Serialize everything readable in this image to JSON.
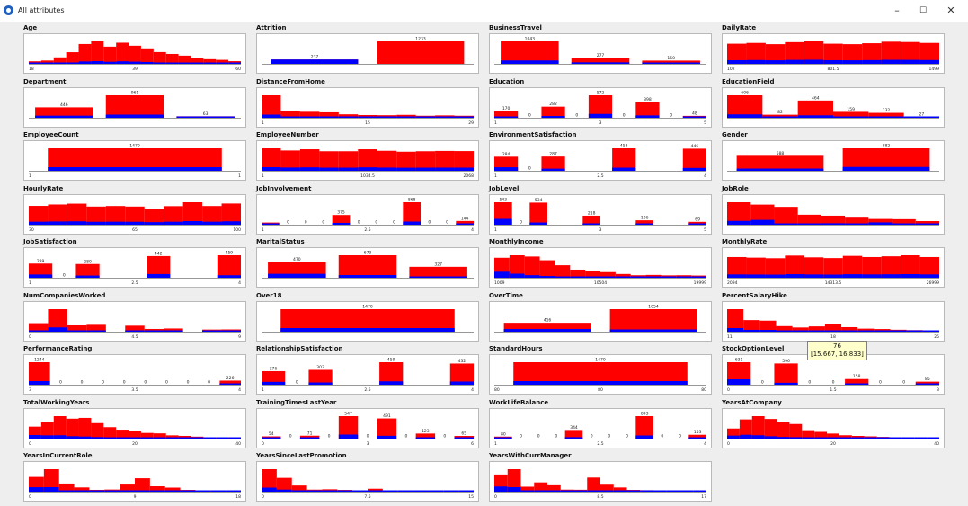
{
  "window": {
    "title": "All attributes",
    "minimize_label": "–",
    "maximize_label": "☐",
    "close_label": "✕",
    "app_icon": "weka-bird-icon"
  },
  "colors": {
    "bar": "#ff0000",
    "class_overlay": "#0000ff",
    "panel_bg": "#ffffff",
    "window_bg": "#eeeeee"
  },
  "tooltip": {
    "line1": "76",
    "line2": "[15.667, 16.833]"
  },
  "chart_data": [
    {
      "type": "bar",
      "title": "Age",
      "values": [
        19,
        25,
        49,
        88,
        150,
        170,
        130,
        160,
        137,
        117,
        89,
        75,
        62,
        45,
        35,
        30,
        20
      ],
      "value_labels": [
        "",
        "",
        "",
        "",
        "",
        "",
        "",
        "",
        "",
        "",
        "",
        "",
        "",
        "",
        "",
        "",
        ""
      ],
      "ticks": [
        "18",
        "39",
        "60"
      ],
      "overlay": [
        0.12,
        0.12,
        0.12,
        0.12,
        0.12,
        0.12,
        0.12,
        0.12,
        0.12,
        0.12,
        0.12,
        0.12,
        0.12,
        0.12,
        0.12,
        0.12,
        0.12
      ]
    },
    {
      "type": "bar",
      "title": "Attrition",
      "values": [
        237,
        1233
      ],
      "value_labels": [
        "237",
        "1233"
      ],
      "ticks": [],
      "overlay": [
        1.0,
        0.0
      ]
    },
    {
      "type": "bar",
      "title": "BusinessTravel",
      "values": [
        1043,
        277,
        150
      ],
      "value_labels": [
        "1043",
        "277",
        "150"
      ],
      "ticks": [],
      "overlay": [
        0.15,
        0.25,
        0.08
      ]
    },
    {
      "type": "bar",
      "title": "DailyRate",
      "values": [
        130,
        135,
        127,
        140,
        145,
        130,
        127,
        133,
        143,
        141,
        135
      ],
      "value_labels": [
        "",
        "",
        "",
        "",
        "",
        "",
        "",
        "",
        "",
        "",
        ""
      ],
      "ticks": [
        "102",
        "801.5",
        "1499"
      ],
      "overlay": [
        0.18,
        0.18,
        0.18,
        0.18,
        0.18,
        0.18,
        0.18,
        0.18,
        0.18,
        0.18,
        0.18
      ]
    },
    {
      "type": "bar",
      "title": "Department",
      "values": [
        446,
        961,
        63
      ],
      "value_labels": [
        "446",
        "961",
        "63"
      ],
      "ticks": [],
      "overlay": [
        0.2,
        0.14,
        0.19
      ]
    },
    {
      "type": "bar",
      "title": "DistanceFromHome",
      "values": [
        620,
        180,
        165,
        150,
        95,
        75,
        70,
        80,
        55,
        65,
        55
      ],
      "value_labels": [
        "",
        "",
        "",
        "",
        "",
        "",
        "",
        "",
        "",
        "",
        ""
      ],
      "ticks": [
        "1",
        "15",
        "29"
      ],
      "overlay": [
        0.14,
        0.14,
        0.14,
        0.14,
        0.14,
        0.14,
        0.14,
        0.14,
        0.14,
        0.14,
        0.14
      ]
    },
    {
      "type": "bar",
      "title": "Education",
      "values": [
        170,
        0,
        282,
        0,
        572,
        0,
        398,
        0,
        48
      ],
      "value_labels": [
        "170",
        "0",
        "282",
        "0",
        "572",
        "0",
        "398",
        "0",
        "48"
      ],
      "ticks": [
        "1",
        "3",
        "5"
      ],
      "overlay": [
        0.18,
        0,
        0.16,
        0,
        0.17,
        0,
        0.15,
        0,
        0.1
      ]
    },
    {
      "type": "bar",
      "title": "EducationField",
      "values": [
        606,
        82,
        464,
        159,
        132,
        27
      ],
      "value_labels": [
        "606",
        "82",
        "464",
        "159",
        "132",
        "27"
      ],
      "ticks": [],
      "overlay": [
        0.15,
        0.15,
        0.14,
        0.22,
        0.13,
        0.26
      ]
    },
    {
      "type": "bar",
      "title": "EmployeeCount",
      "values": [
        1470
      ],
      "value_labels": [
        "1470"
      ],
      "ticks": [
        "1",
        "1"
      ],
      "overlay": [
        0.16
      ]
    },
    {
      "type": "bar",
      "title": "EmployeeNumber",
      "values": [
        146,
        132,
        140,
        127,
        127,
        140,
        130,
        124,
        127,
        129,
        128
      ],
      "value_labels": [
        "",
        "",
        "",
        "",
        "",
        "",
        "",
        "",
        "",
        "",
        ""
      ],
      "ticks": [
        "1",
        "1034.5",
        "2068"
      ],
      "overlay": [
        0.16,
        0.16,
        0.16,
        0.16,
        0.16,
        0.16,
        0.16,
        0.16,
        0.16,
        0.16,
        0.16
      ]
    },
    {
      "type": "bar",
      "title": "EnvironmentSatisfaction",
      "values": [
        284,
        0,
        287,
        0,
        0,
        453,
        0,
        0,
        446
      ],
      "value_labels": [
        "284",
        "0",
        "287",
        "",
        "",
        "453",
        "",
        "",
        "446"
      ],
      "ticks": [
        "1",
        "2.5",
        "4"
      ],
      "overlay": [
        0.25,
        0,
        0.15,
        0,
        0,
        0.14,
        0,
        0,
        0.13
      ]
    },
    {
      "type": "bar",
      "title": "Gender",
      "values": [
        588,
        882
      ],
      "value_labels": [
        "588",
        "882"
      ],
      "ticks": [],
      "overlay": [
        0.15,
        0.17
      ]
    },
    {
      "type": "bar",
      "title": "HourlyRate",
      "values": [
        135,
        145,
        151,
        130,
        134,
        130,
        115,
        133,
        161,
        134,
        152
      ],
      "value_labels": [
        "",
        "",
        "",
        "",
        "",
        "",
        "",
        "",
        "",
        "",
        ""
      ],
      "ticks": [
        "30",
        "65",
        "100"
      ],
      "overlay": [
        0.16,
        0.16,
        0.16,
        0.16,
        0.16,
        0.16,
        0.16,
        0.16,
        0.16,
        0.16,
        0.16
      ]
    },
    {
      "type": "bar",
      "title": "JobInvolvement",
      "values": [
        83,
        0,
        0,
        0,
        375,
        0,
        0,
        0,
        868,
        0,
        0,
        144
      ],
      "value_labels": [
        "",
        "0",
        "0",
        "0",
        "375",
        "0",
        "0",
        "0",
        "868",
        "0",
        "0",
        "144"
      ],
      "ticks": [
        "1",
        "2.5",
        "4"
      ],
      "overlay": [
        0.3,
        0,
        0,
        0,
        0.19,
        0,
        0,
        0,
        0.14,
        0,
        0,
        0.09
      ]
    },
    {
      "type": "bar",
      "title": "JobLevel",
      "values": [
        543,
        0,
        534,
        0,
        0,
        218,
        0,
        0,
        106,
        0,
        0,
        69
      ],
      "value_labels": [
        "543",
        "0",
        "534",
        "",
        "",
        "218",
        "",
        "",
        "106",
        "",
        "",
        "69"
      ],
      "ticks": [
        "1",
        "3",
        "5"
      ],
      "overlay": [
        0.26,
        0,
        0.1,
        0,
        0,
        0.15,
        0,
        0,
        0.05,
        0,
        0,
        0.07
      ]
    },
    {
      "type": "bar",
      "title": "JobRole",
      "values": [
        326,
        292,
        259,
        145,
        131,
        102,
        83,
        80,
        52
      ],
      "value_labels": [
        "",
        "",
        "",
        "",
        "",
        "",
        "",
        "",
        ""
      ],
      "ticks": [],
      "overlay": [
        0.17,
        0.24,
        0.07,
        0.07,
        0.16,
        0.05,
        0.4,
        0.02,
        0.07
      ]
    },
    {
      "type": "bar",
      "title": "JobSatisfaction",
      "values": [
        289,
        0,
        280,
        0,
        0,
        442,
        0,
        0,
        459
      ],
      "value_labels": [
        "289",
        "0",
        "280",
        "",
        "",
        "442",
        "",
        "",
        "459"
      ],
      "ticks": [
        "1",
        "2.5",
        "4"
      ],
      "overlay": [
        0.23,
        0,
        0.16,
        0,
        0,
        0.17,
        0,
        0,
        0.11
      ]
    },
    {
      "type": "bar",
      "title": "MaritalStatus",
      "values": [
        470,
        673,
        327
      ],
      "value_labels": [
        "470",
        "673",
        "327"
      ],
      "ticks": [],
      "overlay": [
        0.25,
        0.12,
        0.1
      ]
    },
    {
      "type": "bar",
      "title": "MonthlyIncome",
      "values": [
        320,
        360,
        340,
        280,
        200,
        130,
        110,
        90,
        60,
        40,
        45,
        38,
        40,
        35
      ],
      "value_labels": [
        "",
        "",
        "",
        "",
        "",
        "",
        "",
        "",
        "",
        "",
        "",
        "",
        "",
        ""
      ],
      "ticks": [
        "1009",
        "10504",
        "19999"
      ],
      "overlay": [
        0.3,
        0.18,
        0.12,
        0.1,
        0.08,
        0.08,
        0.08,
        0.08,
        0.06,
        0.06,
        0.06,
        0.06,
        0.06,
        0.06
      ]
    },
    {
      "type": "bar",
      "title": "MonthlyRate",
      "values": [
        140,
        136,
        132,
        150,
        138,
        133,
        148,
        140,
        145,
        152,
        140
      ],
      "value_labels": [
        "",
        "",
        "",
        "",
        "",
        "",
        "",
        "",
        "",
        "",
        ""
      ],
      "ticks": [
        "2094",
        "14313.5",
        "26999"
      ],
      "overlay": [
        0.16,
        0.16,
        0.16,
        0.16,
        0.16,
        0.16,
        0.16,
        0.16,
        0.16,
        0.16,
        0.16
      ]
    },
    {
      "type": "bar",
      "title": "NumCompaniesWorked",
      "values": [
        197,
        521,
        146,
        159,
        0,
        139,
        63,
        74,
        0,
        49,
        52
      ],
      "value_labels": [
        "",
        "",
        "",
        "",
        "",
        "",
        "",
        "",
        "",
        "",
        ""
      ],
      "ticks": [
        "0",
        "4.5",
        "9"
      ],
      "overlay": [
        0.12,
        0.19,
        0.12,
        0.1,
        0,
        0.12,
        0.25,
        0.22,
        0,
        0.2,
        0.2
      ]
    },
    {
      "type": "bar",
      "title": "Over18",
      "values": [
        1470
      ],
      "value_labels": [
        "1470"
      ],
      "ticks": [],
      "overlay": [
        0.16
      ]
    },
    {
      "type": "bar",
      "title": "OverTime",
      "values": [
        416,
        1054
      ],
      "value_labels": [
        "416",
        "1054"
      ],
      "ticks": [],
      "overlay": [
        0.3,
        0.1
      ]
    },
    {
      "type": "bar",
      "title": "PercentSalaryHike",
      "values": [
        408,
        210,
        200,
        101,
        76,
        96,
        131,
        82,
        55,
        48,
        35,
        28,
        23
      ],
      "value_labels": [
        "",
        "",
        "",
        "",
        "",
        "",
        "",
        "",
        "",
        "",
        "",
        "",
        ""
      ],
      "ticks": [
        "11",
        "18",
        "25"
      ],
      "overlay": [
        0.16,
        0.16,
        0.16,
        0.16,
        0.16,
        0.16,
        0.16,
        0.16,
        0.16,
        0.16,
        0.16,
        0.16,
        0.16
      ]
    },
    {
      "type": "bar",
      "title": "PerformanceRating",
      "values": [
        1244,
        0,
        0,
        0,
        0,
        0,
        0,
        0,
        0,
        226
      ],
      "value_labels": [
        "1244",
        "0",
        "0",
        "0",
        "0",
        "0",
        "0",
        "0",
        "0",
        "226"
      ],
      "ticks": [
        "3",
        "3.5",
        "4"
      ],
      "overlay": [
        0.16,
        0,
        0,
        0,
        0,
        0,
        0,
        0,
        0,
        0.16
      ]
    },
    {
      "type": "bar",
      "title": "RelationshipSatisfaction",
      "values": [
        276,
        0,
        303,
        0,
        0,
        459,
        0,
        0,
        432
      ],
      "value_labels": [
        "276",
        "0",
        "303",
        "",
        "",
        "459",
        "",
        "",
        "432"
      ],
      "ticks": [
        "1",
        "2.5",
        "4"
      ],
      "overlay": [
        0.21,
        0,
        0.15,
        0,
        0,
        0.15,
        0,
        0,
        0.15
      ]
    },
    {
      "type": "bar",
      "title": "StandardHours",
      "values": [
        1470
      ],
      "value_labels": [
        "1470"
      ],
      "ticks": [
        "80",
        "80",
        "80"
      ],
      "overlay": [
        0.16
      ]
    },
    {
      "type": "bar",
      "title": "StockOptionLevel",
      "values": [
        631,
        0,
        596,
        0,
        0,
        158,
        0,
        0,
        85
      ],
      "value_labels": [
        "631",
        "0",
        "596",
        "0",
        "0",
        "158",
        "0",
        "0",
        "85"
      ],
      "ticks": [
        "0",
        "1.5",
        "3"
      ],
      "overlay": [
        0.24,
        0,
        0.09,
        0,
        0,
        0.08,
        0,
        0,
        0.14
      ]
    },
    {
      "type": "bar",
      "title": "TotalWorkingYears",
      "values": [
        110,
        150,
        206,
        183,
        190,
        142,
        105,
        82,
        70,
        52,
        48,
        30,
        25,
        18,
        12,
        10,
        8
      ],
      "value_labels": [
        "",
        "",
        "",
        "",
        "",
        "",
        "",
        "",
        "",
        "",
        "",
        "",
        "",
        "",
        "",
        "",
        ""
      ],
      "ticks": [
        "0",
        "20",
        "40"
      ],
      "overlay": [
        0.3,
        0.2,
        0.15,
        0.12,
        0.1,
        0.1,
        0.1,
        0.08,
        0.08,
        0.08,
        0.08,
        0.08,
        0.08,
        0.08,
        0.08,
        0.08,
        0.08
      ]
    },
    {
      "type": "bar",
      "title": "TrainingTimesLastYear",
      "values": [
        54,
        0,
        71,
        0,
        547,
        0,
        491,
        0,
        123,
        0,
        65
      ],
      "value_labels": [
        "54",
        "0",
        "71",
        "0",
        "547",
        "0",
        "491",
        "0",
        "123",
        "0",
        "65"
      ],
      "ticks": [
        "0",
        "3",
        "6"
      ],
      "overlay": [
        0.22,
        0,
        0.2,
        0,
        0.18,
        0,
        0.14,
        0,
        0.15,
        0,
        0.14
      ]
    },
    {
      "type": "bar",
      "title": "WorkLifeBalance",
      "values": [
        80,
        0,
        0,
        0,
        344,
        0,
        0,
        0,
        893,
        0,
        0,
        153
      ],
      "value_labels": [
        "80",
        "0",
        "0",
        "0",
        "344",
        "0",
        "0",
        "0",
        "893",
        "0",
        "0",
        "153"
      ],
      "ticks": [
        "1",
        "2.5",
        "4"
      ],
      "overlay": [
        0.31,
        0,
        0,
        0,
        0.17,
        0,
        0,
        0,
        0.14,
        0,
        0,
        0.18
      ]
    },
    {
      "type": "bar",
      "title": "YearsAtCompany",
      "values": [
        90,
        171,
        200,
        175,
        150,
        130,
        75,
        60,
        45,
        30,
        24,
        20,
        15,
        10,
        8,
        6,
        5
      ],
      "value_labels": [
        "",
        "",
        "",
        "",
        "",
        "",
        "",
        "",
        "",
        "",
        "",
        "",
        "",
        "",
        "",
        "",
        ""
      ],
      "ticks": [
        "0",
        "20",
        "40"
      ],
      "overlay": [
        0.3,
        0.2,
        0.15,
        0.12,
        0.1,
        0.1,
        0.1,
        0.08,
        0.08,
        0.08,
        0.08,
        0.08,
        0.08,
        0.08,
        0.08,
        0.08,
        0.08
      ]
    },
    {
      "type": "bar",
      "title": "YearsInCurrentRole",
      "values": [
        244,
        372,
        135,
        70,
        30,
        35,
        118,
        222,
        89,
        67,
        29,
        22,
        18,
        14
      ],
      "value_labels": [
        "",
        "",
        "",
        "",
        "",
        "",
        "",
        "",
        "",
        "",
        "",
        "",
        "",
        ""
      ],
      "ticks": [
        "0",
        "9",
        "18"
      ],
      "overlay": [
        0.3,
        0.2,
        0.15,
        0.12,
        0.1,
        0.1,
        0.1,
        0.08,
        0.08,
        0.08,
        0.08,
        0.08,
        0.08,
        0.08
      ]
    },
    {
      "type": "bar",
      "title": "YearsSinceLastPromotion",
      "values": [
        581,
        357,
        159,
        52,
        61,
        45,
        32,
        76,
        18,
        17,
        24,
        10,
        9,
        14
      ],
      "value_labels": [
        "",
        "",
        "",
        "",
        "",
        "",
        "",
        "",
        "",
        "",
        "",
        "",
        "",
        ""
      ],
      "ticks": [
        "0",
        "7.5",
        "15"
      ],
      "overlay": [
        0.18,
        0.15,
        0.15,
        0.15,
        0.15,
        0.15,
        0.15,
        0.15,
        0.15,
        0.15,
        0.15,
        0.15,
        0.15,
        0.15
      ]
    },
    {
      "type": "bar",
      "title": "YearsWithCurrManager",
      "values": [
        263,
        344,
        76,
        142,
        98,
        31,
        29,
        216,
        107,
        64,
        27,
        22,
        18,
        14,
        11,
        9
      ],
      "value_labels": [
        "",
        "",
        "",
        "",
        "",
        "",
        "",
        "",
        "",
        "",
        "",
        "",
        "",
        "",
        "",
        ""
      ],
      "ticks": [
        "0",
        "8.5",
        "17"
      ],
      "overlay": [
        0.3,
        0.2,
        0.15,
        0.12,
        0.1,
        0.1,
        0.1,
        0.08,
        0.08,
        0.08,
        0.08,
        0.08,
        0.08,
        0.08,
        0.08,
        0.08
      ]
    }
  ]
}
